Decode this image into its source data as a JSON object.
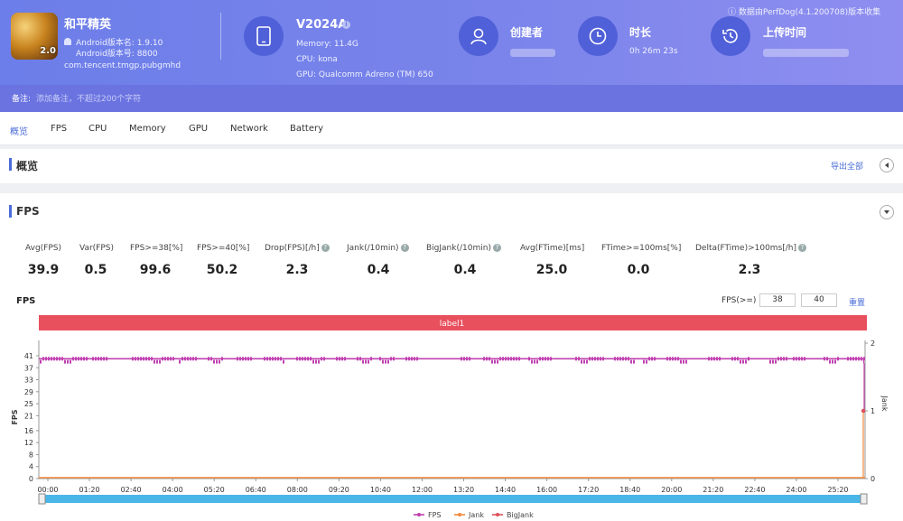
{
  "app": {
    "name": "和平精英",
    "icon_badge": "2.0",
    "version_name": "Android版本名: 1.9.10",
    "version_code": "Android版本号: 8800",
    "package": "com.tencent.tmgp.pubgmhd"
  },
  "device": {
    "model": "V2024A",
    "info_glyph": "i",
    "memory": "Memory: 11.4G",
    "cpu": "CPU: kona",
    "gpu": "GPU: Qualcomm Adreno (TM) 650"
  },
  "stats": {
    "creator_label": "创建者",
    "duration_label": "时长",
    "duration_value": "0h 26m 23s",
    "upload_label": "上传时间"
  },
  "perfdog_note": "ⓘ 数据由PerfDog(4.1.200708)版本收集",
  "note": {
    "label": "备注:",
    "placeholder": "添加备注，不超过200个字符"
  },
  "tabs": [
    "概览",
    "FPS",
    "CPU",
    "Memory",
    "GPU",
    "Network",
    "Battery"
  ],
  "overview": {
    "title": "概览",
    "export_label": "导出全部"
  },
  "fps_section": {
    "title": "FPS",
    "metrics": [
      {
        "label": "Avg(FPS)",
        "value": "39.9",
        "help": false
      },
      {
        "label": "Var(FPS)",
        "value": "0.5",
        "help": false
      },
      {
        "label": "FPS>=38[%]",
        "value": "99.6",
        "help": false
      },
      {
        "label": "FPS>=40[%]",
        "value": "50.2",
        "help": false
      },
      {
        "label": "Drop(FPS)[/h]",
        "value": "2.3",
        "help": true
      },
      {
        "label": "Jank(/10min)",
        "value": "0.4",
        "help": true
      },
      {
        "label": "BigJank(/10min)",
        "value": "0.4",
        "help": true
      },
      {
        "label": "Avg(FTime)[ms]",
        "value": "25.0",
        "help": false
      },
      {
        "label": "FTime>=100ms[%]",
        "value": "0.0",
        "help": false
      },
      {
        "label": "Delta(FTime)>100ms[/h]",
        "value": "2.3",
        "help": true
      }
    ],
    "chart_title": "FPS",
    "threshold_label": "FPS(>=)",
    "threshold_1": "38",
    "threshold_2": "40",
    "reset_label": "重置"
  },
  "colors": {
    "accent": "#4a6cd8",
    "fps": "#c040b0",
    "jank": "#f08a3c",
    "bigjank": "#e0505a",
    "label_band": "#e8505e"
  },
  "chart_data": {
    "type": "line",
    "title": "FPS",
    "band_label": "label1",
    "ylabel": "FPS",
    "y2label": "Jank",
    "yticks": [
      0,
      4,
      8,
      12,
      16,
      21,
      25,
      29,
      33,
      37,
      41
    ],
    "y2ticks": [
      0,
      1,
      2
    ],
    "ylim": [
      0,
      41
    ],
    "y2lim": [
      0,
      2
    ],
    "xticks": [
      "00:00",
      "01:20",
      "02:40",
      "04:00",
      "05:20",
      "06:40",
      "08:00",
      "09:20",
      "10:40",
      "12:00",
      "13:20",
      "14:40",
      "16:00",
      "17:20",
      "18:40",
      "20:00",
      "21:20",
      "22:40",
      "24:00",
      "25:20"
    ],
    "xlim_seconds": [
      0,
      1583
    ],
    "series": [
      {
        "name": "FPS",
        "baseline": 40,
        "dip": 39,
        "end_drop": 38
      },
      {
        "name": "Jank",
        "values_note": "0 except final spike to 1 at end"
      },
      {
        "name": "BigJank",
        "values_note": "0 except final spike to 1 at end"
      }
    ],
    "legend": [
      "FPS",
      "Jank",
      "BigJank"
    ],
    "legend_position": "bottom"
  }
}
